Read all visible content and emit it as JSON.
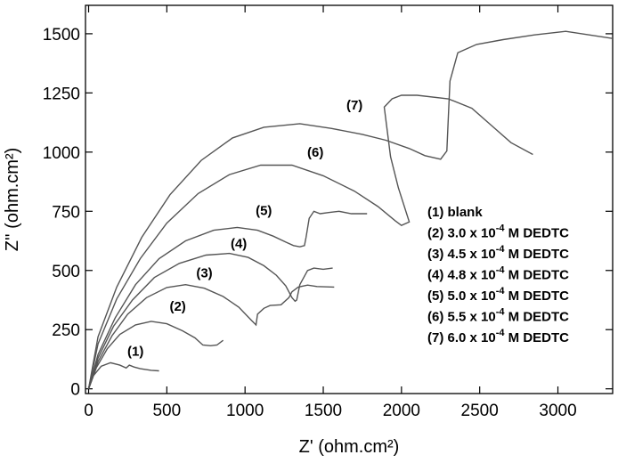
{
  "chart_data": {
    "type": "line",
    "xlabel": "Z' (ohm.cm²)",
    "ylabel": "Z'' (ohm.cm²)",
    "xlim": [
      -20,
      3350
    ],
    "ylim": [
      -20,
      1620
    ],
    "xticks": [
      0,
      500,
      1000,
      1500,
      2000,
      2500,
      3000
    ],
    "yticks": [
      0,
      250,
      500,
      750,
      1000,
      1250,
      1500
    ],
    "grid": false,
    "legend_position": "right",
    "legend": [
      {
        "prefix": "(1) blank",
        "exp": "",
        "suffix": ""
      },
      {
        "prefix": "(2) 3.0 x 10",
        "exp": "-4",
        "suffix": " M DEDTC"
      },
      {
        "prefix": "(3) 4.5 x 10",
        "exp": "-4",
        "suffix": " M DEDTC"
      },
      {
        "prefix": "(4) 4.8 x 10",
        "exp": "-4",
        "suffix": " M DEDTC"
      },
      {
        "prefix": "(5) 5.0 x 10",
        "exp": "-4",
        "suffix": " M DEDTC"
      },
      {
        "prefix": "(6) 5.5 x 10",
        "exp": "-4",
        "suffix": " M DEDTC"
      },
      {
        "prefix": "(7) 6.0 x 10",
        "exp": "-4",
        "suffix": " M DEDTC"
      }
    ],
    "series": [
      {
        "label": "(1)",
        "label_pos": [
          300,
          140
        ],
        "points": [
          [
            0,
            0
          ],
          [
            30,
            55
          ],
          [
            80,
            95
          ],
          [
            140,
            110
          ],
          [
            200,
            100
          ],
          [
            240,
            88
          ],
          [
            260,
            100
          ],
          [
            290,
            92
          ],
          [
            330,
            85
          ],
          [
            400,
            78
          ],
          [
            450,
            76
          ]
        ]
      },
      {
        "label": "(2)",
        "label_pos": [
          570,
          330
        ],
        "points": [
          [
            0,
            0
          ],
          [
            50,
            90
          ],
          [
            120,
            170
          ],
          [
            200,
            230
          ],
          [
            300,
            270
          ],
          [
            400,
            285
          ],
          [
            500,
            275
          ],
          [
            600,
            245
          ],
          [
            680,
            215
          ],
          [
            730,
            185
          ],
          [
            780,
            182
          ],
          [
            820,
            185
          ],
          [
            860,
            205
          ]
        ]
      },
      {
        "label": "(3)",
        "label_pos": [
          740,
          470
        ],
        "points": [
          [
            0,
            0
          ],
          [
            60,
            115
          ],
          [
            150,
            225
          ],
          [
            250,
            315
          ],
          [
            370,
            385
          ],
          [
            500,
            428
          ],
          [
            620,
            440
          ],
          [
            740,
            425
          ],
          [
            860,
            390
          ],
          [
            960,
            345
          ],
          [
            1040,
            290
          ],
          [
            1070,
            270
          ],
          [
            1080,
            315
          ],
          [
            1120,
            340
          ],
          [
            1160,
            352
          ],
          [
            1230,
            355
          ],
          [
            1280,
            385
          ],
          [
            1300,
            410
          ],
          [
            1340,
            430
          ],
          [
            1400,
            438
          ],
          [
            1460,
            432
          ],
          [
            1570,
            430
          ]
        ]
      },
      {
        "label": "(4)",
        "label_pos": [
          960,
          595
        ],
        "points": [
          [
            0,
            0
          ],
          [
            60,
            130
          ],
          [
            160,
            265
          ],
          [
            280,
            375
          ],
          [
            420,
            470
          ],
          [
            580,
            530
          ],
          [
            750,
            565
          ],
          [
            900,
            572
          ],
          [
            1020,
            555
          ],
          [
            1120,
            520
          ],
          [
            1200,
            480
          ],
          [
            1260,
            435
          ],
          [
            1300,
            385
          ],
          [
            1320,
            370
          ],
          [
            1330,
            375
          ],
          [
            1350,
            440
          ],
          [
            1400,
            500
          ],
          [
            1440,
            510
          ],
          [
            1500,
            505
          ],
          [
            1560,
            510
          ]
        ]
      },
      {
        "label": "(5)",
        "label_pos": [
          1120,
          735
        ],
        "points": [
          [
            0,
            0
          ],
          [
            60,
            145
          ],
          [
            170,
            300
          ],
          [
            300,
            440
          ],
          [
            450,
            550
          ],
          [
            620,
            625
          ],
          [
            800,
            670
          ],
          [
            950,
            682
          ],
          [
            1080,
            670
          ],
          [
            1180,
            645
          ],
          [
            1260,
            620
          ],
          [
            1310,
            605
          ],
          [
            1350,
            600
          ],
          [
            1380,
            605
          ],
          [
            1390,
            640
          ],
          [
            1410,
            720
          ],
          [
            1440,
            750
          ],
          [
            1480,
            740
          ],
          [
            1540,
            745
          ],
          [
            1600,
            750
          ],
          [
            1680,
            740
          ],
          [
            1780,
            740
          ]
        ]
      },
      {
        "label": "(6)",
        "label_pos": [
          1450,
          980
        ],
        "points": [
          [
            0,
            0
          ],
          [
            60,
            190
          ],
          [
            180,
            380
          ],
          [
            330,
            550
          ],
          [
            500,
            700
          ],
          [
            700,
            825
          ],
          [
            900,
            905
          ],
          [
            1100,
            945
          ],
          [
            1300,
            945
          ],
          [
            1500,
            900
          ],
          [
            1700,
            835
          ],
          [
            1850,
            770
          ],
          [
            1960,
            710
          ],
          [
            2000,
            690
          ],
          [
            2050,
            705
          ],
          [
            1980,
            850
          ],
          [
            1930,
            980
          ],
          [
            1890,
            1190
          ],
          [
            1940,
            1225
          ],
          [
            2000,
            1240
          ],
          [
            2100,
            1240
          ],
          [
            2300,
            1225
          ],
          [
            2450,
            1185
          ],
          [
            2580,
            1110
          ],
          [
            2700,
            1040
          ],
          [
            2840,
            990
          ]
        ]
      },
      {
        "label": "(7)",
        "label_pos": [
          1700,
          1180
        ],
        "points": [
          [
            0,
            0
          ],
          [
            60,
            220
          ],
          [
            180,
            430
          ],
          [
            340,
            640
          ],
          [
            520,
            820
          ],
          [
            720,
            965
          ],
          [
            920,
            1060
          ],
          [
            1120,
            1105
          ],
          [
            1350,
            1120
          ],
          [
            1550,
            1100
          ],
          [
            1750,
            1075
          ],
          [
            1900,
            1050
          ],
          [
            2050,
            1015
          ],
          [
            2150,
            985
          ],
          [
            2250,
            970
          ],
          [
            2290,
            1005
          ],
          [
            2300,
            1150
          ],
          [
            2310,
            1300
          ],
          [
            2360,
            1420
          ],
          [
            2480,
            1455
          ],
          [
            2650,
            1475
          ],
          [
            2850,
            1495
          ],
          [
            3050,
            1510
          ],
          [
            3200,
            1495
          ],
          [
            3350,
            1480
          ]
        ]
      }
    ]
  }
}
